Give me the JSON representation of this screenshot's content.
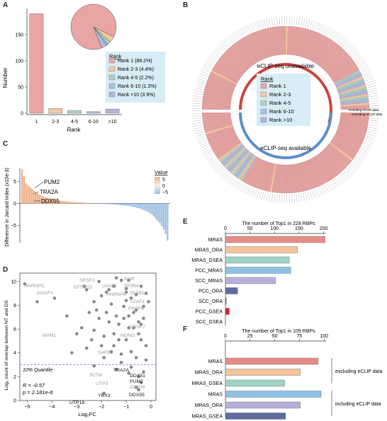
{
  "panels": {
    "A": "A",
    "B": "B",
    "C": "C",
    "D": "D",
    "E": "E",
    "F": "F"
  },
  "colors": {
    "rank1": "#e8a5a3",
    "rank2_3": "#f5c9a0",
    "rank4_5": "#a8d5c5",
    "rank6_10": "#9fc5e0",
    "rank_gt10": "#b9b3dc",
    "legend_bg": "#d8ecf6",
    "arc_red": "#c9453e",
    "arc_blue": "#5b8fc9",
    "c_pos": "#f0b088",
    "c_neg": "#9fbfe0",
    "gray": "#999999",
    "dashed": "#7777cc",
    "bar_MRAS": "#e58c86",
    "bar_MRAS_ORA": "#f3c49a",
    "bar_MRAS_GSEA": "#9fd3c5",
    "bar_PCC_MRAS": "#8fc2e3",
    "bar_SCC_MRAS": "#b7b0d9",
    "bar_PCC_ORA": "#5e6aa0",
    "bar_SCC_ORA": "#3a9a8a",
    "bar_PCC_GSEA": "#d4262a",
    "bar_SCC_GSEA": "#4a8a5a",
    "bar_MRAS_f": "#e58c86",
    "bar_MRAS_ORA_f": "#f3c49a",
    "bar_MRAS_GSEA_f": "#9fd3c5",
    "bar_MRAS_inc": "#8fc2e3",
    "bar_MRAS_ORA_inc": "#b7b0d9",
    "bar_MRAS_GSEA_inc": "#5e6aa0"
  },
  "legend": {
    "title": "Rank",
    "items": [
      "Rank 1 (88.2%)",
      "Rank 2-3 (4.4%)",
      "Rank 4-5 (2.2%)",
      "Rank 6-10 (1.3%)",
      "Rank >10 (3.9%)"
    ]
  },
  "legend_b": {
    "title": "Rank",
    "items": [
      "Rank 1",
      "Rank 2-3",
      "Rank 4-5",
      "Rank 6-10",
      "Rank >10"
    ]
  },
  "panel_b": {
    "unavailable": "eCLIP-seq unavailable",
    "available": "eCLIP-seq available",
    "including": "including eCLIP data",
    "excluding": "excluding eCLIP data"
  },
  "panel_c": {
    "ylabel": "Difference in Jarcard Index (x10e-3)",
    "legend_title": "Value",
    "legend_ticks": [
      "5",
      "0",
      "−5"
    ],
    "labels": [
      "PUM2",
      "TRA2A",
      "DDX55"
    ]
  },
  "panel_d": {
    "ylabel": "Log₂ count of overlap between NT and DS",
    "xlabel": "Log₂FC",
    "quantile": "10% Quantile",
    "stat_r": "R = -0.57",
    "stat_p": "p  = 2.181e-8"
  },
  "panel_e": {
    "title": "The number of Top1 in 228 RBPs"
  },
  "panel_f": {
    "title": "The number of Top1 in 109 RBPs",
    "excluding": "excluding eCLIP data",
    "including": "including eCLIP data"
  },
  "chart_data": [
    {
      "id": "A",
      "type": "bar",
      "categories": [
        "1",
        "2-3",
        "4-5",
        "6-10",
        ">10"
      ],
      "values": [
        190,
        9,
        5,
        3,
        8
      ],
      "xlabel": "Rank",
      "ylabel": "Number",
      "ylim": [
        0,
        200
      ],
      "yticks": [
        0,
        50,
        100,
        150
      ],
      "ytick_labels": [
        "0",
        "50",
        "100",
        "150"
      ],
      "legend": "right"
    },
    {
      "id": "A-pie",
      "type": "pie",
      "labels": [
        "Rank 1",
        "Rank 2-3",
        "Rank 4-5",
        "Rank 6-10",
        "Rank >10"
      ],
      "values": [
        88.2,
        4.4,
        2.2,
        1.3,
        3.9
      ]
    },
    {
      "id": "C",
      "type": "bar",
      "ylabel": "Difference in Jarcard Index (x10e-3)",
      "ylim": [
        -9,
        8
      ],
      "yticks": [
        5,
        0,
        -5
      ],
      "values": [
        7.8,
        6.2,
        4.6,
        4.1,
        3.8,
        3.4,
        3.0,
        2.6,
        2.3,
        2.0,
        1.8,
        1.6,
        1.4,
        1.3,
        1.2,
        1.1,
        1.0,
        0.9,
        0.8,
        0.7,
        0.6,
        0.55,
        0.5,
        0.45,
        0.4,
        0.35,
        0.3,
        0.28,
        0.25,
        0.22,
        0.2,
        0.18,
        0.15,
        0.12,
        0.1,
        0.08,
        0.05,
        0.03,
        -0.03,
        -0.05,
        -0.08,
        -0.1,
        -0.12,
        -0.15,
        -0.18,
        -0.2,
        -0.22,
        -0.25,
        -0.28,
        -0.3,
        -0.35,
        -0.4,
        -0.45,
        -0.5,
        -0.55,
        -0.6,
        -0.7,
        -0.8,
        -0.9,
        -1.0,
        -1.1,
        -1.2,
        -1.4,
        -1.6,
        -1.8,
        -2.0,
        -2.3,
        -2.6,
        -3.0,
        -3.5,
        -4.0,
        -4.5,
        -5.2,
        -6.0,
        -7.0,
        -8.5
      ],
      "annotations": [
        "PUM2",
        "TRA2A",
        "DDX55"
      ]
    },
    {
      "id": "D",
      "type": "scatter",
      "xlabel": "Log₂FC",
      "ylabel": "Log₂ count of overlap between NT and DS",
      "xlim": [
        -5.3,
        0.2
      ],
      "ylim": [
        0,
        10.7
      ],
      "xticks": [
        -5,
        -4,
        -3,
        -2,
        -1,
        0
      ],
      "yticks": [
        0,
        2,
        4,
        6,
        8,
        10
      ],
      "hline": 3.0,
      "points": [
        [
          -5.1,
          9.8
        ],
        [
          -3.9,
          8.6
        ],
        [
          -3.2,
          4.0
        ],
        [
          -2.7,
          9.6
        ],
        [
          -2.6,
          9.3
        ],
        [
          -2.3,
          8.3
        ],
        [
          -2.0,
          8.8
        ],
        [
          -1.8,
          9.1
        ],
        [
          -1.5,
          9.6
        ],
        [
          -1.2,
          10.1
        ],
        [
          -1.0,
          9.4
        ],
        [
          -0.8,
          8.6
        ],
        [
          -0.6,
          7.6
        ],
        [
          -0.5,
          6.6
        ],
        [
          -0.9,
          6.1
        ],
        [
          -1.3,
          5.1
        ],
        [
          -1.6,
          4.1
        ],
        [
          -1.9,
          3.6
        ],
        [
          -2.3,
          2.9
        ],
        [
          -1.4,
          2.6
        ],
        [
          -0.9,
          2.3
        ],
        [
          -0.5,
          2.0
        ],
        [
          -0.3,
          2.4
        ],
        [
          -0.4,
          1.5
        ],
        [
          -0.6,
          1.1
        ],
        [
          -0.5,
          0.9
        ],
        [
          -1.9,
          0.6
        ],
        [
          -0.2,
          4.6
        ],
        [
          -0.4,
          6.4
        ],
        [
          -0.7,
          7.4
        ],
        [
          -1.1,
          7.9
        ],
        [
          -1.4,
          7.1
        ],
        [
          -1.7,
          6.6
        ],
        [
          -2.1,
          6.9
        ],
        [
          -2.5,
          7.4
        ],
        [
          -2.8,
          6.1
        ],
        [
          -3.0,
          5.6
        ],
        [
          -2.4,
          5.1
        ],
        [
          -1.5,
          5.6
        ],
        [
          -1.0,
          5.1
        ],
        [
          -0.8,
          4.1
        ],
        [
          -0.6,
          3.6
        ],
        [
          -1.2,
          3.9
        ],
        [
          -2.0,
          4.6
        ],
        [
          -1.6,
          8.1
        ],
        [
          -1.0,
          8.4
        ],
        [
          -0.3,
          7.9
        ],
        [
          -0.5,
          5.6
        ],
        [
          -1.3,
          6.4
        ],
        [
          -0.9,
          7.1
        ],
        [
          -2.2,
          7.6
        ],
        [
          -1.8,
          7.4
        ],
        [
          -1.1,
          6.9
        ],
        [
          -0.7,
          6.1
        ],
        [
          -0.4,
          5.1
        ],
        [
          -0.2,
          3.4
        ],
        [
          -1.5,
          4.6
        ],
        [
          -2.6,
          4.4
        ],
        [
          -3.4,
          7.1
        ],
        [
          -4.6,
          8.3
        ],
        [
          -1.2,
          3.2
        ],
        [
          -0.8,
          2.8
        ],
        [
          -0.2,
          9.0
        ],
        [
          -0.1,
          8.3
        ],
        [
          -0.3,
          6.9
        ],
        [
          -0.6,
          8.9
        ],
        [
          -1.7,
          9.3
        ],
        [
          -2.1,
          10.0
        ],
        [
          -1.4,
          10.3
        ],
        [
          -0.9,
          10.1
        ],
        [
          -1.9,
          5.4
        ],
        [
          -2.3,
          5.9
        ],
        [
          -0.4,
          9.6
        ],
        [
          -1.0,
          9.1
        ]
      ],
      "annotations": [
        "HNRNPC",
        "SRSF1",
        "AQR",
        "EFTUD2",
        "U2AF2",
        "SF3B4",
        "AGGF1",
        "HNRNPK",
        "SF3B1",
        "U2AF1",
        "PRPF8",
        "NPM1",
        "SRSF7",
        "NONO",
        "SAFB2",
        "SLTM",
        "TRA2A",
        "DDX51",
        "PUM2",
        "UTP3",
        "ZC3H8",
        "YBX3",
        "DDX55",
        "UTP18"
      ],
      "stats": [
        "R = -0.57",
        "p  = 2.181e-8"
      ]
    },
    {
      "id": "E",
      "type": "bar",
      "orientation": "horizontal",
      "title": "The number of Top1 in 228 RBPs",
      "categories": [
        "MRAS",
        "MRAS_ORA",
        "MRAS_GSEA",
        "PCC_MRAS",
        "SCC_MRAS",
        "PCC_ORA",
        "SCC_ORA",
        "PCC_GSEA",
        "SCC_GSEA"
      ],
      "values": [
        203,
        147,
        130,
        133,
        102,
        25,
        2,
        8,
        0
      ],
      "xlim": [
        0,
        205
      ],
      "xticks": [
        0,
        50,
        100,
        150,
        200
      ]
    },
    {
      "id": "F",
      "type": "bar",
      "orientation": "horizontal",
      "title": "The number of Top1 in 109 RBPs",
      "categories": [
        "MRAS",
        "MRAS_ORA",
        "MRAS_GSEA",
        "MRAS",
        "MRAS_ORA",
        "MRAS_GSEA"
      ],
      "groups": [
        "excluding eCLIP data",
        "excluding eCLIP data",
        "excluding eCLIP data",
        "including eCLIP data",
        "including eCLIP data",
        "including eCLIP data"
      ],
      "values": [
        94,
        76,
        60,
        97,
        76,
        61
      ],
      "xlim": [
        0,
        102
      ],
      "xticks": [
        0,
        25,
        50,
        75,
        100
      ]
    }
  ]
}
